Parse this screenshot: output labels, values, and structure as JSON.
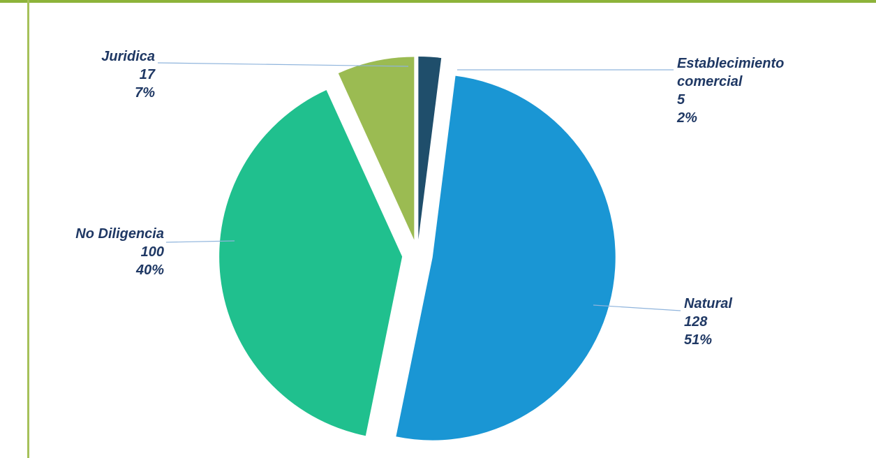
{
  "chart_data": {
    "type": "pie",
    "categories": [
      "Establecimiento comercial",
      "Natural",
      "No Diligencia",
      "Juridica"
    ],
    "values": [
      5,
      128,
      100,
      17
    ],
    "percent_labels": [
      "2%",
      "51%",
      "40%",
      "7%"
    ],
    "colors": [
      "#1f4e6b",
      "#1a96d4",
      "#20c08e",
      "#9bbb52"
    ],
    "legend": false
  }
}
